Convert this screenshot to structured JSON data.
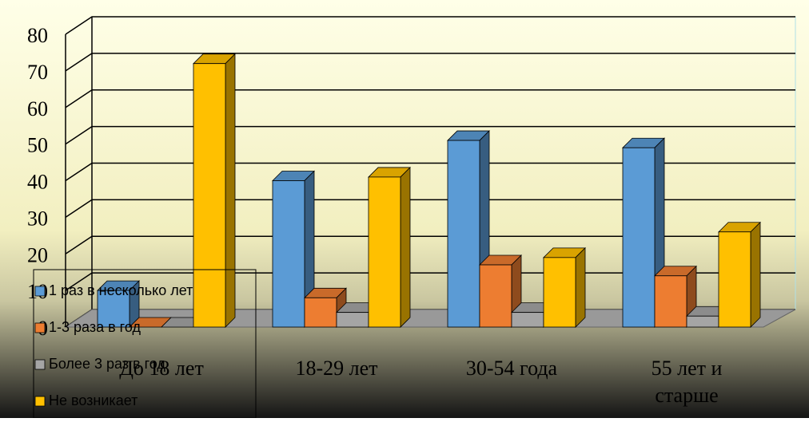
{
  "chart_data": {
    "type": "bar",
    "title": "",
    "xlabel": "",
    "ylabel": "",
    "ylim": [
      0,
      80
    ],
    "y_ticks": [
      "0",
      "10",
      "20",
      "30",
      "40",
      "50",
      "60",
      "70",
      "80"
    ],
    "categories": [
      "До 18 лет",
      "18-29 лет",
      "30-54 года",
      "55 лет и старше"
    ],
    "series": [
      {
        "name": "1 раз в несколько лет",
        "values": [
          10,
          40,
          51,
          49
        ],
        "color": "#5b9bd5"
      },
      {
        "name": "1-3 раза в год",
        "values": [
          0,
          8,
          17,
          14
        ],
        "color": "#ed7d31"
      },
      {
        "name": "Более 3 раз в год",
        "values": [
          0,
          4,
          4,
          3
        ],
        "color": "#a5a5a5"
      },
      {
        "name": "Не возникает",
        "values": [
          72,
          41,
          19,
          26
        ],
        "color": "#ffc000"
      }
    ],
    "grid": true,
    "legend_position": "bottom-left",
    "style": "3d-clustered-column"
  },
  "colors": {
    "background_gradient_top": "#ffffe8",
    "background_gradient_bottom": "#141414",
    "floor": "#999999",
    "grid_line": "#000000"
  }
}
